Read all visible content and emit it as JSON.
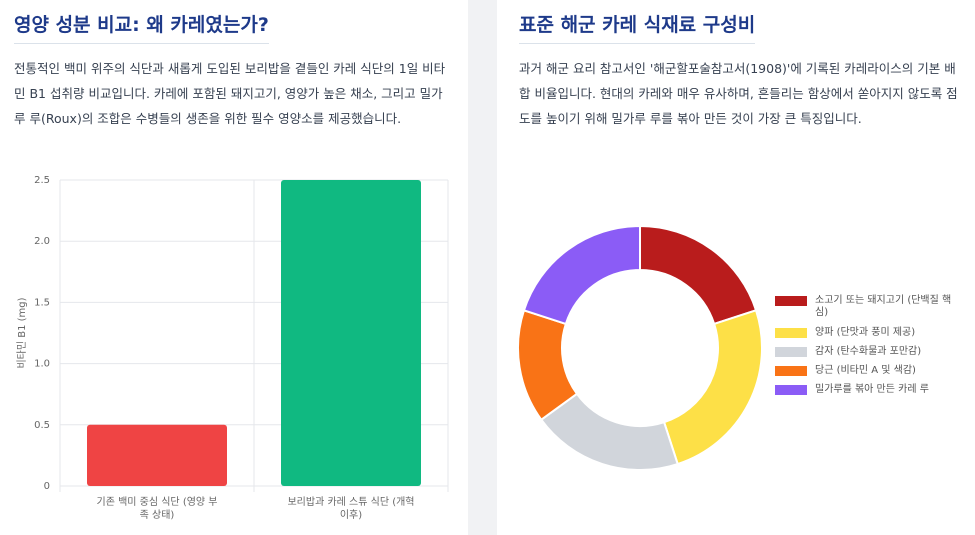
{
  "chart_data": [
    {
      "type": "bar",
      "title": "영양 성분 비교: 왜 카레였는가?",
      "description": "전통적인 백미 위주의 식단과 새롭게 도입된 보리밥을 곁들인 카레 식단의 1일 비타민 B1 섭취량 비교입니다. 카레에 포함된 돼지고기, 영양가 높은 채소, 그리고 밀가루 루(Roux)의 조합은 수병들의 생존을 위한 필수 영양소를 제공했습니다.",
      "y_label": "비타민 B1 (mg)",
      "categories": [
        "기존 백미 중심 식단 (영양 부족 상태)",
        "보리밥과 카레 스튜 식단 (개혁 이후)"
      ],
      "values": [
        0.5,
        2.5
      ],
      "colors": [
        "#ef4444",
        "#10b981"
      ],
      "ylim": [
        0,
        2.5
      ],
      "yticks": [
        0,
        0.5,
        {
          "value": 1,
          "label": "1.0"
        },
        1.5,
        {
          "value": 2,
          "label": "2.0"
        },
        2.5
      ],
      "grid": true
    },
    {
      "type": "doughnut",
      "title": "표준 해군 카레 식재료 구성비",
      "description": "과거 해군 요리 참고서인 '해군할포술참고서(1908)'에 기록된 카레라이스의 기본 배합 비율입니다. 현대의 카레와 매우 유사하며, 흔들리는 함상에서 쏟아지지 않도록 점도를 높이기 위해 밀가루 루를 볶아 만든 것이 가장 큰 특징입니다.",
      "categories": [
        "소고기 또는 돼지고기 (단백질 핵심)",
        "양파 (단맛과 풍미 제공)",
        "감자 (탄수화물과 포만감)",
        "당근 (비타민 A 및 색감)",
        "밀가루를 볶아 만든 카레 루"
      ],
      "values": [
        20,
        25,
        20,
        15,
        20
      ],
      "colors": [
        "#b91c1c",
        "#fde047",
        "#d1d5db",
        "#f97316",
        "#8b5cf6"
      ],
      "legend": "right"
    }
  ]
}
